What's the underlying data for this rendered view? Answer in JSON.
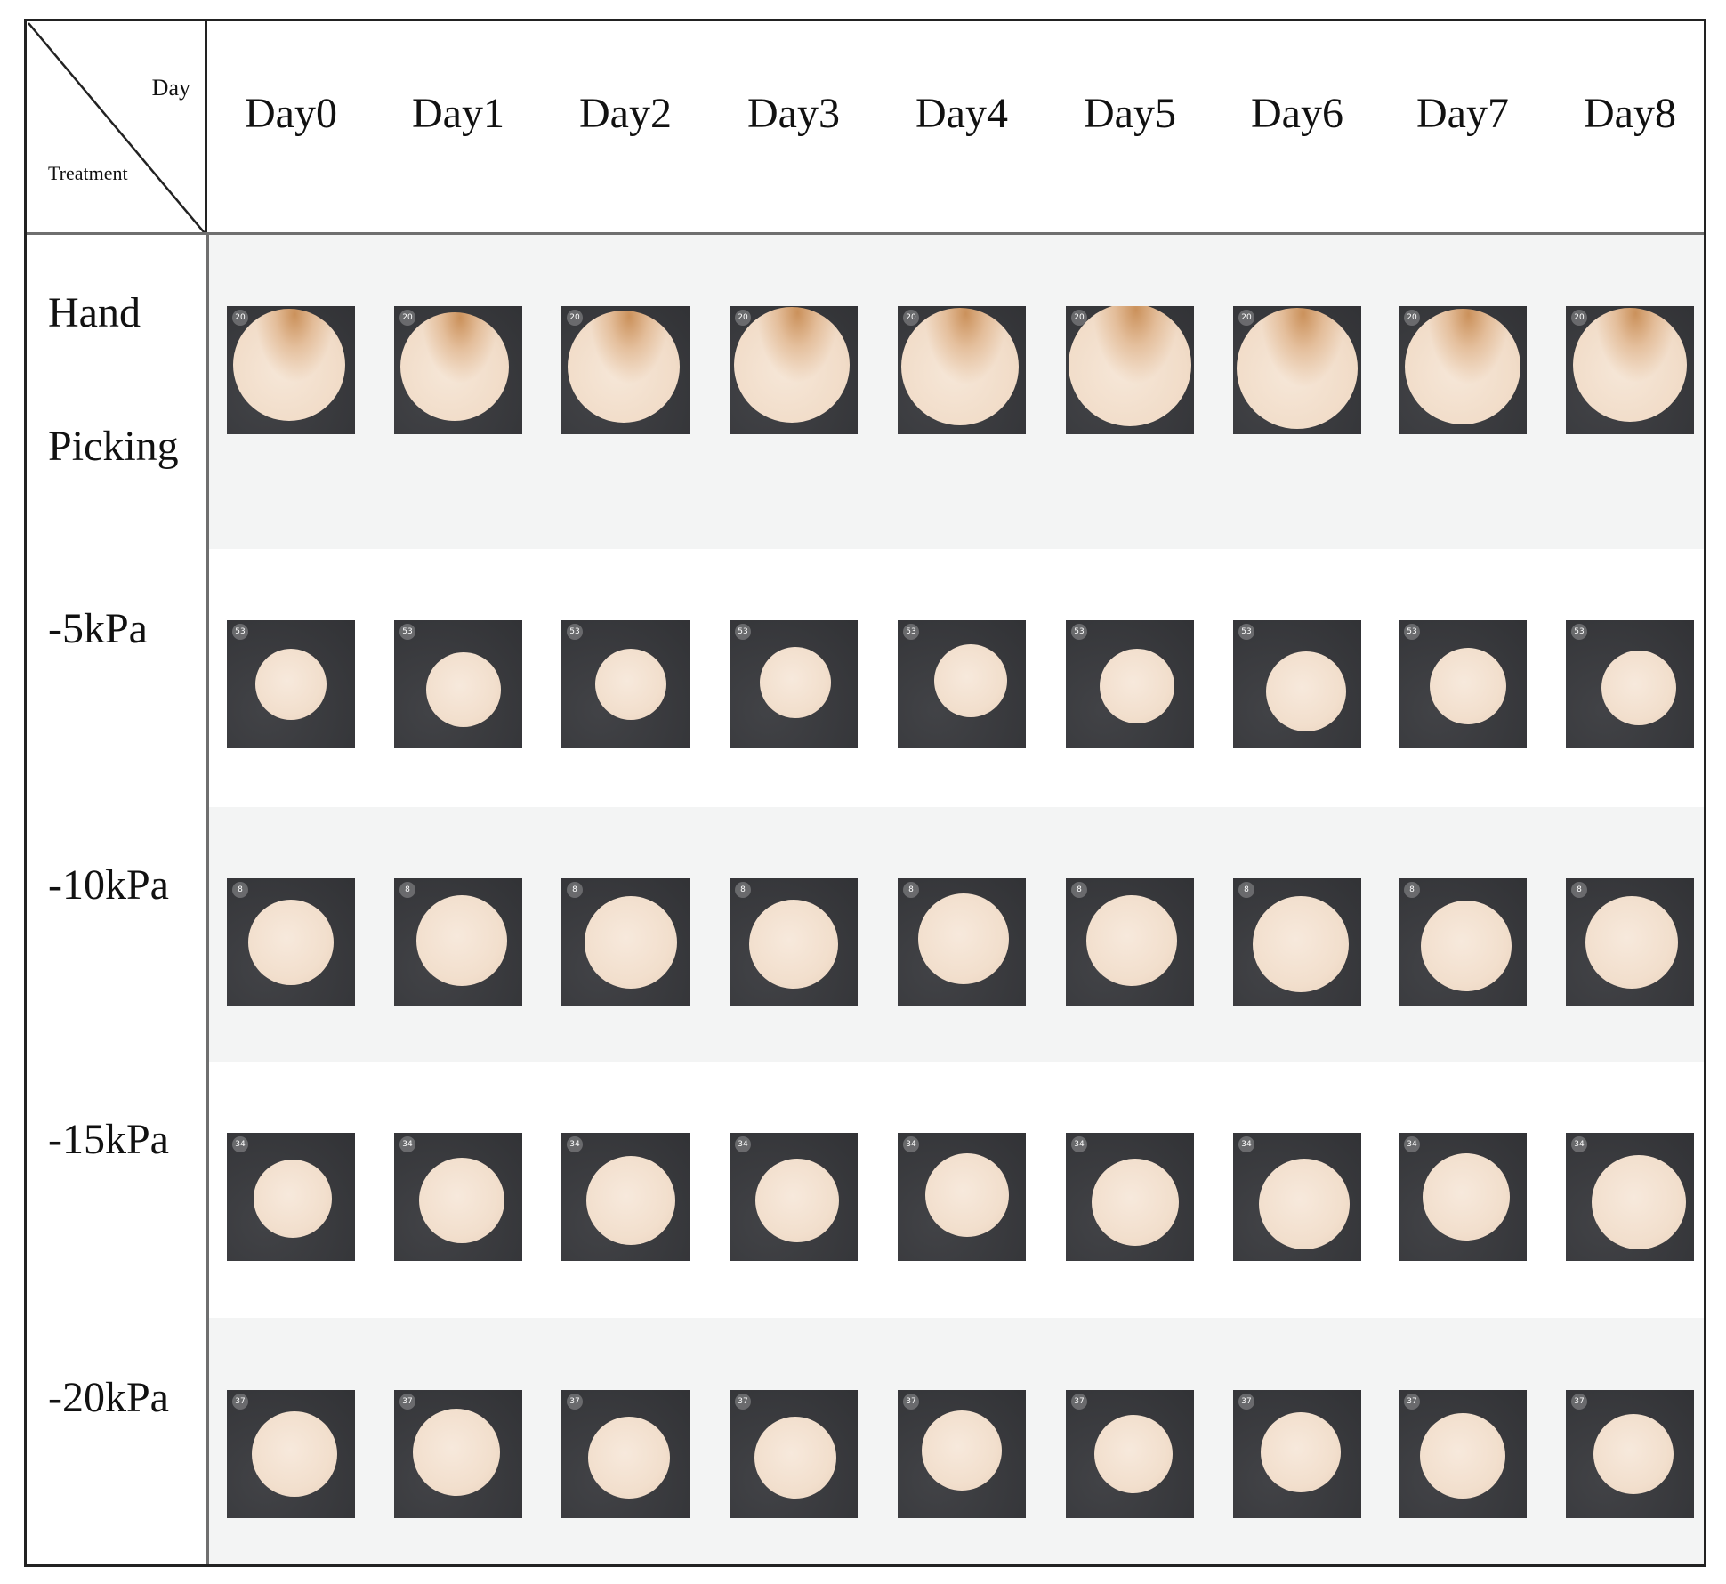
{
  "table": {
    "corner": {
      "top_label": "Day",
      "bottom_label": "Treatment"
    },
    "days": [
      "Day0",
      "Day1",
      "Day2",
      "Day3",
      "Day4",
      "Day5",
      "Day6",
      "Day7",
      "Day8"
    ],
    "treatments": [
      {
        "label_lines": [
          "Hand",
          "Picking"
        ],
        "sample_number": "20"
      },
      {
        "label_lines": [
          "-5kPa"
        ],
        "sample_number": "53"
      },
      {
        "label_lines": [
          "-10kPa"
        ],
        "sample_number": "8"
      },
      {
        "label_lines": [
          "-15kPa"
        ],
        "sample_number": "34"
      },
      {
        "label_lines": [
          "-20kPa"
        ],
        "sample_number": "37"
      }
    ]
  },
  "colors": {
    "photo_background": "#3a3b3f",
    "sample_color": "#f2dfcd",
    "browning_color": "#c48448",
    "row_shade": "#f3f4f4"
  }
}
